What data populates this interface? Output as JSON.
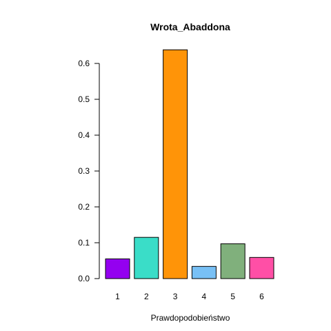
{
  "chart_data": {
    "type": "bar",
    "title": "Wrota_Abaddona",
    "xlabel": "Prawdopodobieństwo",
    "ylabel": "",
    "categories": [
      "1",
      "2",
      "3",
      "4",
      "5",
      "6"
    ],
    "values": [
      0.055,
      0.115,
      0.638,
      0.034,
      0.097,
      0.059
    ],
    "colors": [
      "#9400F0",
      "#3ADDC8",
      "#FF9408",
      "#78C0F5",
      "#80B07C",
      "#FF4FA6"
    ],
    "ylim": [
      0,
      0.6
    ],
    "yticks": [
      0.0,
      0.1,
      0.2,
      0.3,
      0.4,
      0.5,
      0.6
    ],
    "ytick_labels": [
      "0.0",
      "0.1",
      "0.2",
      "0.3",
      "0.4",
      "0.5",
      "0.6"
    ],
    "grid": false,
    "legend": "none"
  }
}
